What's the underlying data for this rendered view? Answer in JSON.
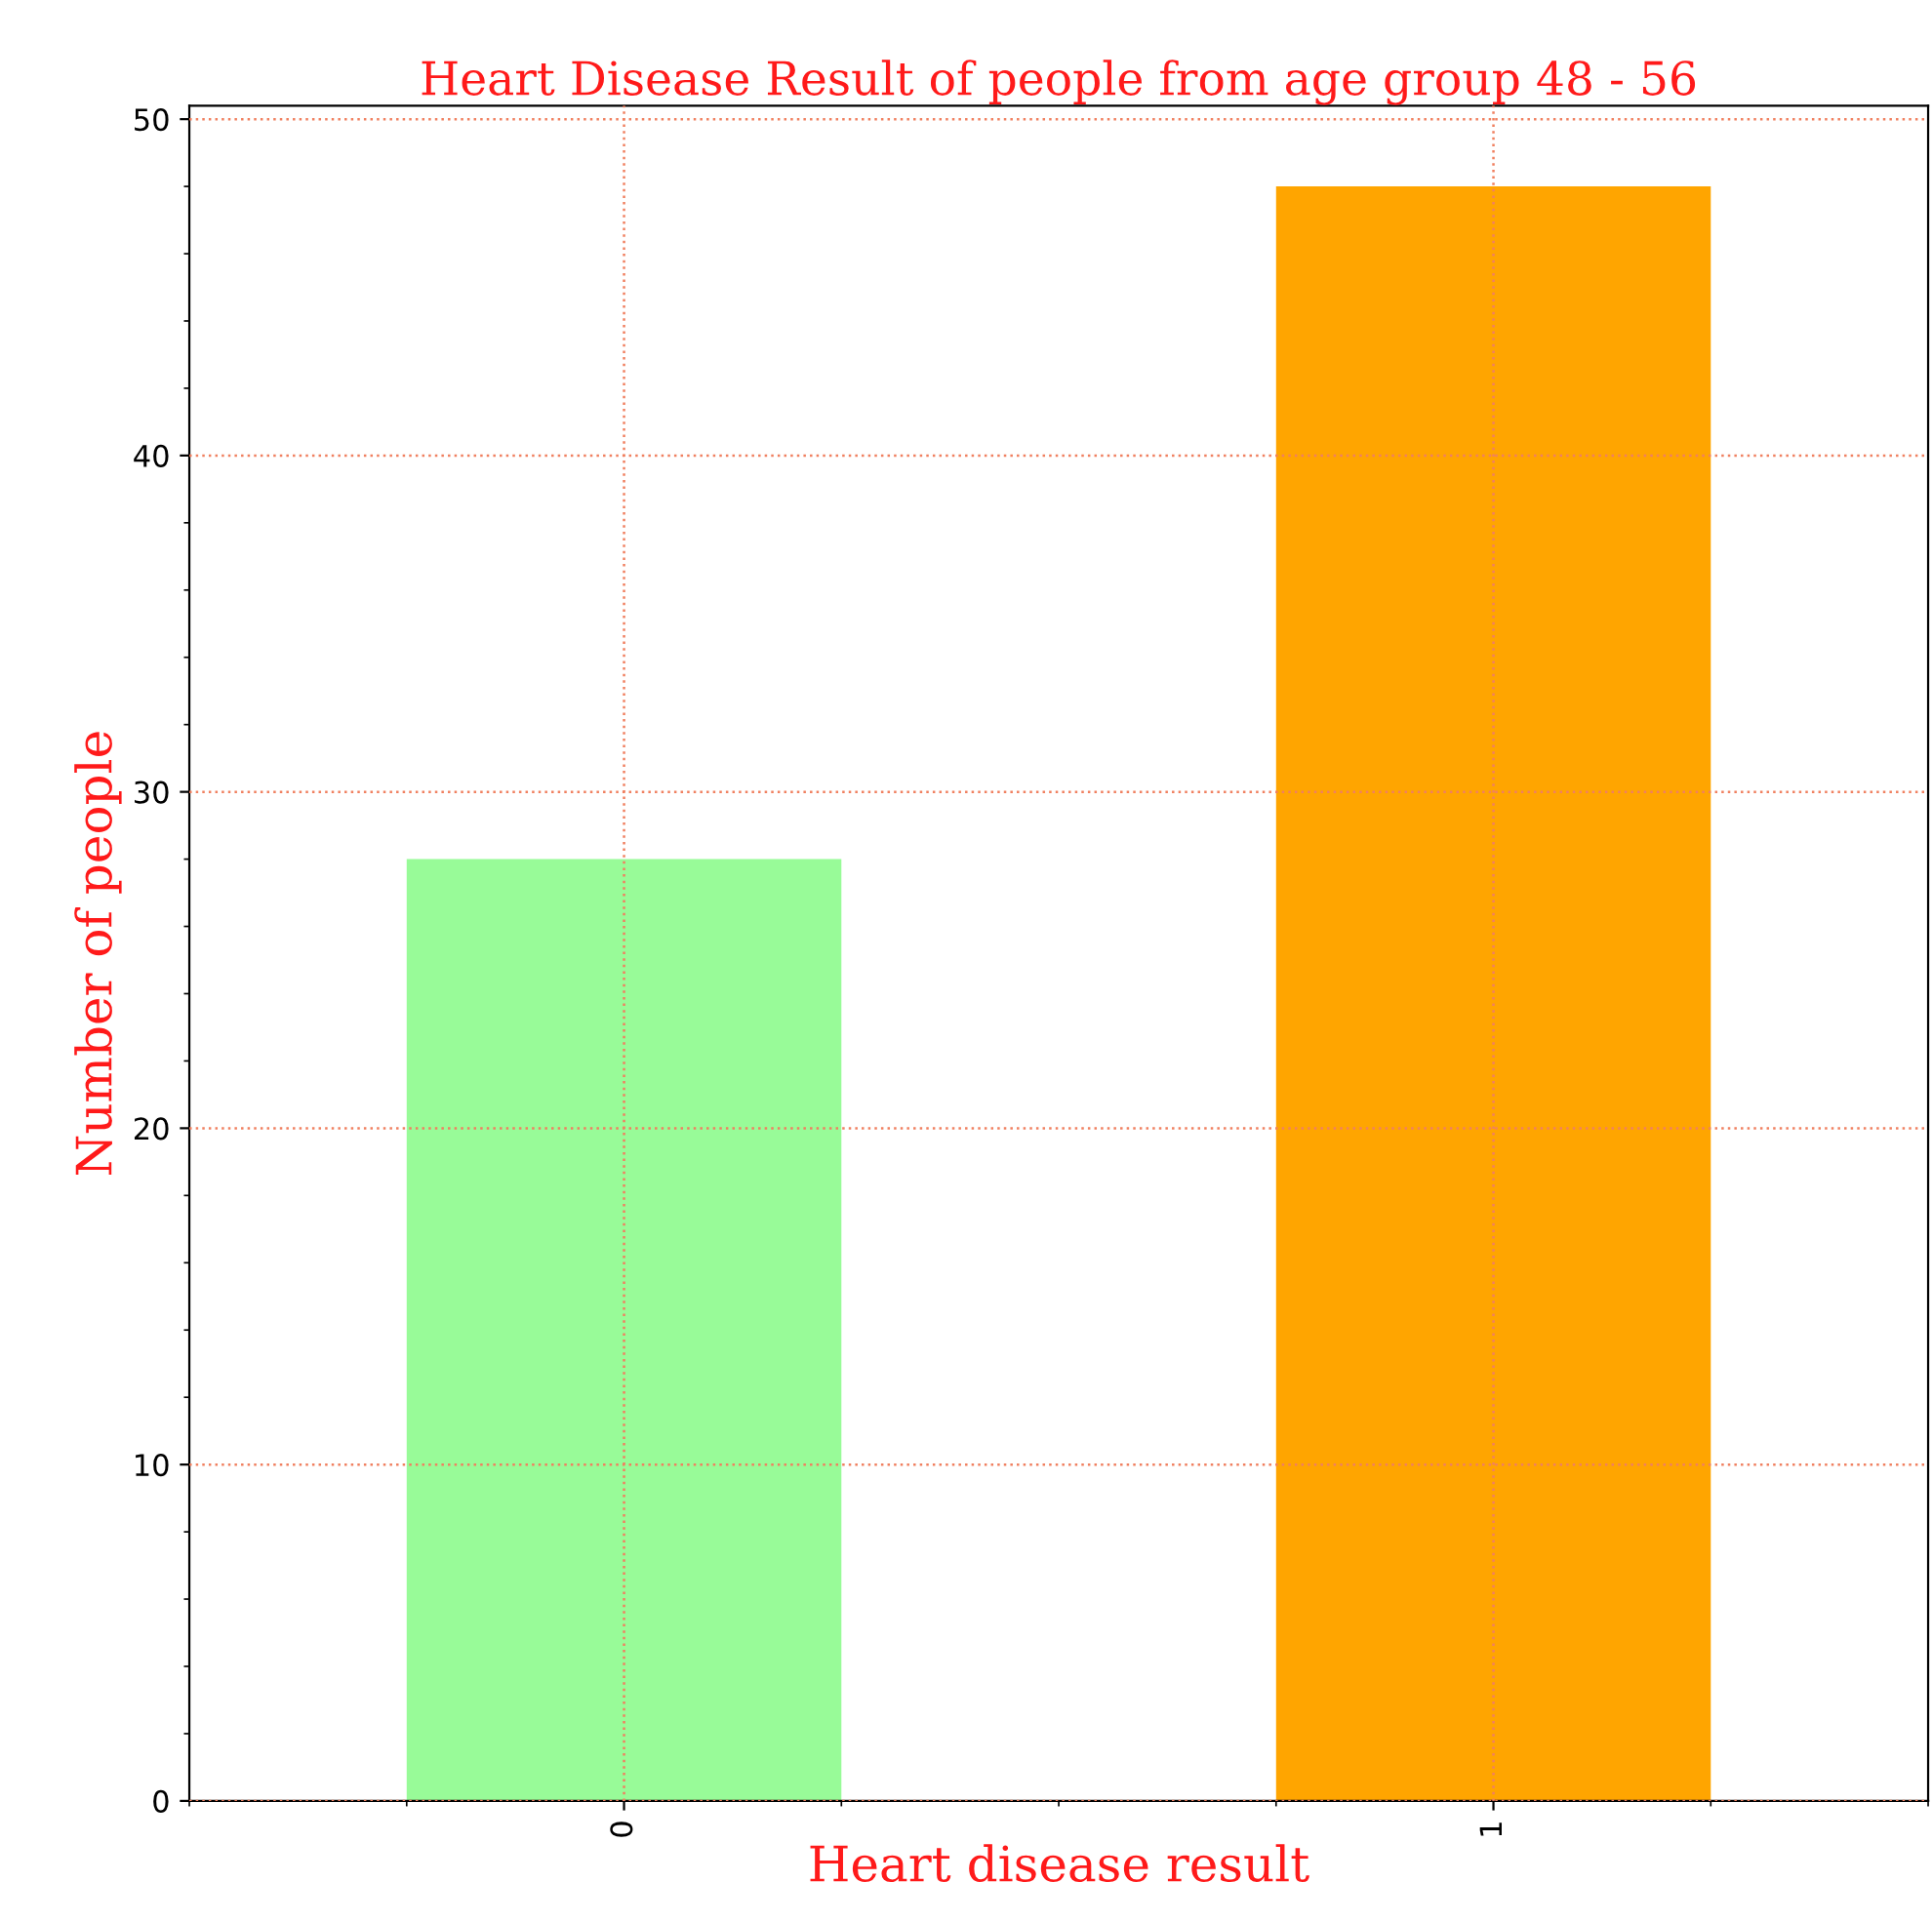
{
  "chart_data": {
    "type": "bar",
    "title": "Heart Disease Result of people from age group 48 - 56",
    "xlabel": "Heart disease result",
    "ylabel": "Number of people",
    "categories": [
      "0",
      "1"
    ],
    "values": [
      28,
      48
    ],
    "colors": [
      "#98fb98",
      "#ffa500"
    ],
    "ylim": [
      0,
      50.4
    ],
    "yticks": [
      0,
      10,
      20,
      30,
      40,
      50
    ],
    "grid": true
  }
}
